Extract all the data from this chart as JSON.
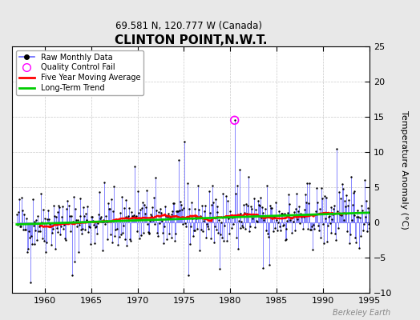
{
  "title": "CLINTON POINT,N.W.T.",
  "subtitle": "69.581 N, 120.777 W (Canada)",
  "ylabel": "Temperature Anomaly (°C)",
  "watermark": "Berkeley Earth",
  "xlim": [
    1956.5,
    1995
  ],
  "ylim": [
    -10,
    25
  ],
  "yticks": [
    -10,
    -5,
    0,
    5,
    10,
    15,
    20,
    25
  ],
  "xticks": [
    1960,
    1965,
    1970,
    1975,
    1980,
    1985,
    1990,
    1995
  ],
  "background_color": "#e8e8e8",
  "plot_bg_color": "#ffffff",
  "raw_line_color": "#6666ff",
  "dot_color": "#000000",
  "qc_fail_color": "#ff00ff",
  "moving_avg_color": "#ff0000",
  "trend_color": "#00cc00",
  "seed": 42,
  "n_years": 38,
  "start_year": 1957,
  "qc_time": 1980.45,
  "qc_val": 14.5
}
